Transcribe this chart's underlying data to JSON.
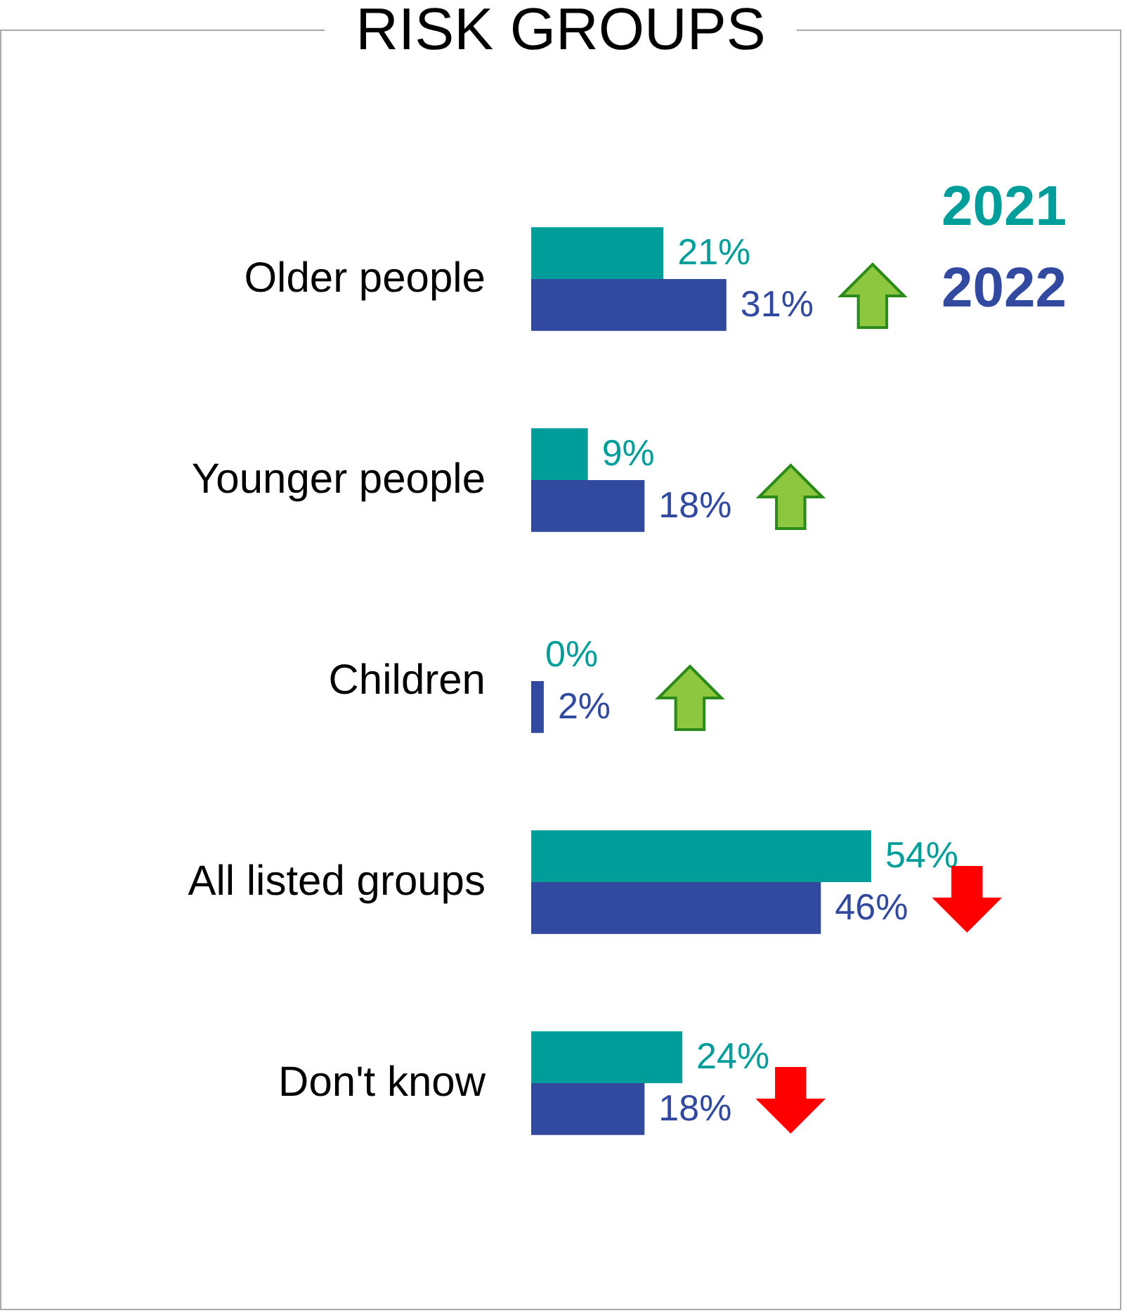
{
  "chart_data": {
    "type": "bar",
    "orientation": "horizontal",
    "title": "RISK GROUPS",
    "categories": [
      "Older people",
      "Younger people",
      "Children",
      "All listed groups",
      "Don't know"
    ],
    "series": [
      {
        "name": "2021",
        "color": "#009e9a",
        "values": [
          21,
          9,
          0,
          54,
          24
        ],
        "value_labels": [
          "21%",
          "9%",
          "0%",
          "54%",
          "24%"
        ]
      },
      {
        "name": "2022",
        "color": "#3249a0",
        "values": [
          31,
          18,
          2,
          46,
          18
        ],
        "value_labels": [
          "31%",
          "18%",
          "2%",
          "46%",
          "18%"
        ]
      }
    ],
    "tick_labels": "y",
    "legend": "top right"
  }
}
